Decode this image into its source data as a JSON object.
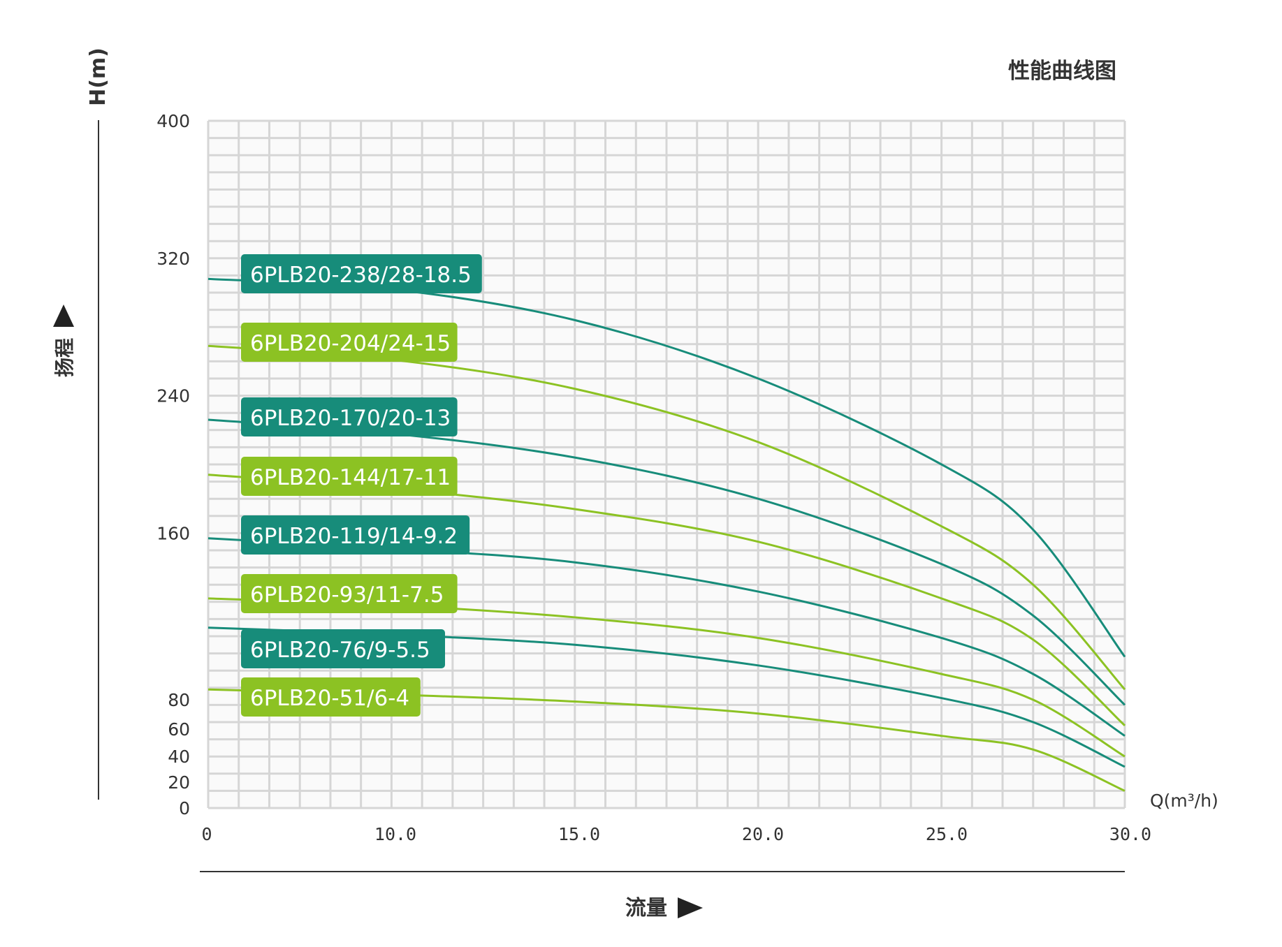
{
  "chart_data": {
    "type": "line",
    "title": "性能曲线图",
    "ylabel_unit": "H(m)",
    "ylabel": "扬程",
    "xlabel_unit": "Q(m³/h)",
    "xlabel": "流量",
    "y_ticks": [
      "0",
      "20",
      "40",
      "60",
      "80",
      "160",
      "240",
      "320",
      "400"
    ],
    "x_ticks": [
      "0",
      "10.0",
      "15.0",
      "20.0",
      "25.0",
      "30.0"
    ],
    "grid": true,
    "xlim": [
      0,
      30
    ],
    "ylim": [
      0,
      400
    ],
    "colors": {
      "dark": "#178C7A",
      "light": "#8CC223",
      "grid": "#D6D6D6"
    },
    "series": [
      {
        "name": "6PLB20-238/28-18.5",
        "color": "dark",
        "points": [
          [
            0,
            308
          ],
          [
            6,
            302
          ],
          [
            12,
            284
          ],
          [
            18,
            250
          ],
          [
            24,
            200
          ],
          [
            27,
            162
          ],
          [
            30,
            88
          ]
        ]
      },
      {
        "name": "6PLB20-204/24-15",
        "color": "light",
        "points": [
          [
            0,
            269
          ],
          [
            6,
            261
          ],
          [
            12,
            244
          ],
          [
            18,
            213
          ],
          [
            24,
            164
          ],
          [
            27,
            130
          ],
          [
            30,
            69
          ]
        ]
      },
      {
        "name": "6PLB20-170/20-13",
        "color": "dark",
        "points": [
          [
            0,
            226
          ],
          [
            6,
            218
          ],
          [
            12,
            204
          ],
          [
            18,
            180
          ],
          [
            24,
            142
          ],
          [
            27,
            112
          ],
          [
            30,
            60
          ]
        ]
      },
      {
        "name": "6PLB20-144/17-11",
        "color": "light",
        "points": [
          [
            0,
            194
          ],
          [
            6,
            186
          ],
          [
            12,
            174
          ],
          [
            18,
            155
          ],
          [
            24,
            122
          ],
          [
            27,
            98
          ],
          [
            30,
            48
          ]
        ]
      },
      {
        "name": "6PLB20-119/14-9.2",
        "color": "dark",
        "points": [
          [
            0,
            157
          ],
          [
            6,
            151
          ],
          [
            12,
            143
          ],
          [
            18,
            126
          ],
          [
            24,
            99
          ],
          [
            27,
            78
          ],
          [
            30,
            42
          ]
        ]
      },
      {
        "name": "6PLB20-93/11-7.5",
        "color": "light",
        "points": [
          [
            0,
            122
          ],
          [
            6,
            118
          ],
          [
            12,
            111
          ],
          [
            18,
            99
          ],
          [
            24,
            78
          ],
          [
            27,
            63
          ],
          [
            30,
            30
          ]
        ]
      },
      {
        "name": "6PLB20-76/9-5.5",
        "color": "dark",
        "points": [
          [
            0,
            105
          ],
          [
            6,
            101
          ],
          [
            12,
            95
          ],
          [
            18,
            83
          ],
          [
            24,
            64
          ],
          [
            27,
            50
          ],
          [
            30,
            24
          ]
        ]
      },
      {
        "name": "6PLB20-51/6-4",
        "color": "light",
        "points": [
          [
            0,
            69
          ],
          [
            6,
            66
          ],
          [
            12,
            62
          ],
          [
            18,
            55
          ],
          [
            24,
            42
          ],
          [
            27,
            34
          ],
          [
            30,
            10
          ]
        ]
      }
    ]
  }
}
